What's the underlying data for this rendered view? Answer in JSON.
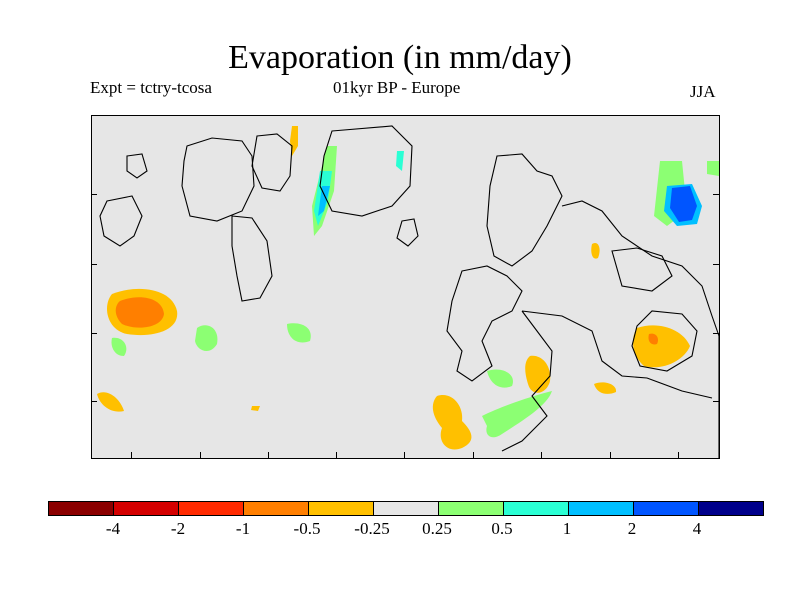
{
  "title": "Evaporation (in mm/day)",
  "experiment": "Expt = tctry-tcosa",
  "period_region": "01kyr BP - Europe",
  "season": "JJA",
  "colorbar": {
    "colors": [
      "#8b0000",
      "#d40000",
      "#ff2a00",
      "#ff7f00",
      "#ffc000",
      "#e6e6e6",
      "#8cff73",
      "#2affd4",
      "#00bfff",
      "#0055ff",
      "#00008b"
    ],
    "labels": [
      "-4",
      "-2",
      "-1",
      "-0.5",
      "-0.25",
      "0.25",
      "0.5",
      "1",
      "2",
      "4"
    ]
  }
}
